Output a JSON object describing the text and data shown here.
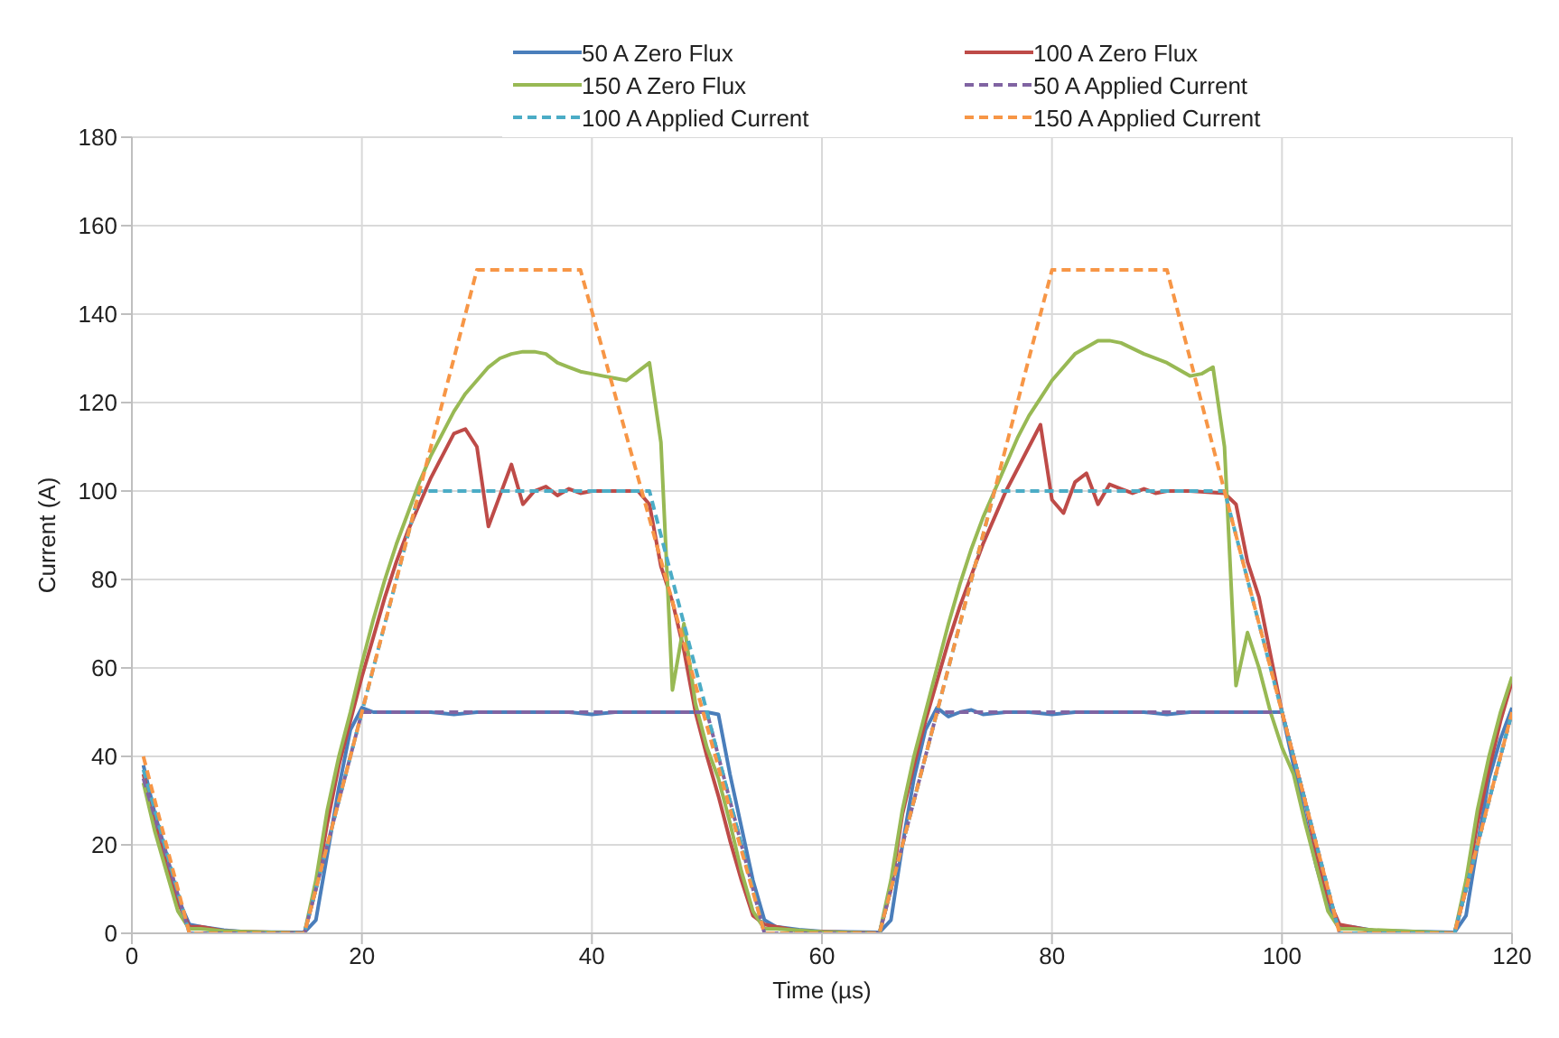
{
  "chart_data": {
    "type": "line",
    "xlabel": "Time (µs)",
    "ylabel": "Current (A)",
    "xlim": [
      0,
      120
    ],
    "xticks": [
      0,
      20,
      40,
      60,
      80,
      100,
      120
    ],
    "ylim": [
      0,
      180
    ],
    "yticks": [
      0,
      20,
      40,
      60,
      80,
      100,
      120,
      140,
      160,
      180
    ],
    "grid": true,
    "legend": "top",
    "marker": "none",
    "series": [
      {
        "name": "50 A Zero Flux",
        "color": "#4a7ebb",
        "line_style": "solid",
        "x": [
          1,
          2,
          3,
          4,
          5,
          6,
          8,
          10,
          15,
          16,
          17,
          18,
          19,
          20,
          21,
          22,
          24,
          26,
          28,
          30,
          32,
          34,
          36,
          38,
          40,
          42,
          44,
          46,
          48,
          50,
          51,
          52,
          53,
          54,
          55,
          56,
          58,
          60,
          65,
          66,
          67,
          68,
          69,
          70,
          71,
          72,
          73,
          74,
          76,
          78,
          80,
          82,
          84,
          86,
          88,
          90,
          92,
          94,
          96,
          98,
          100,
          101,
          102,
          103,
          104,
          105,
          106,
          108,
          115,
          116,
          117,
          118,
          119,
          120
        ],
        "values": [
          38,
          27,
          18,
          8,
          2,
          1.5,
          0.7,
          0.3,
          0.2,
          3,
          18,
          33,
          46,
          51,
          50,
          50,
          50,
          50,
          49.5,
          50,
          50,
          50,
          50,
          50,
          49.5,
          50,
          50,
          50,
          50,
          50,
          49.5,
          36,
          24,
          12,
          3,
          1.5,
          0.8,
          0.4,
          0.2,
          3,
          20,
          35,
          46,
          51,
          49,
          50,
          50.5,
          49.5,
          50,
          50,
          49.5,
          50,
          50,
          50,
          50,
          49.5,
          50,
          50,
          50,
          50,
          50,
          38,
          26,
          15,
          6,
          1.5,
          1.5,
          0.6,
          0.2,
          4,
          20,
          35,
          44,
          51
        ]
      },
      {
        "name": "100 A Zero Flux",
        "color": "#be4b48",
        "line_style": "solid",
        "x": [
          1,
          2,
          3,
          4,
          5,
          6,
          8,
          15,
          16,
          17,
          18,
          19,
          20,
          21,
          22,
          23,
          24,
          25,
          26,
          27,
          28,
          29,
          30,
          31,
          32,
          33,
          34,
          35,
          36,
          37,
          38,
          39,
          40,
          42,
          44,
          45,
          46,
          47,
          48,
          49,
          50,
          51,
          52,
          53,
          54,
          55,
          56,
          58,
          65,
          66,
          67,
          68,
          69,
          70,
          71,
          72,
          73,
          74,
          75,
          76,
          77,
          78,
          79,
          80,
          81,
          82,
          83,
          84,
          85,
          86,
          87,
          88,
          89,
          90,
          92,
          95,
          96,
          97,
          98,
          99,
          100,
          101,
          102,
          103,
          104,
          105,
          106,
          108,
          115,
          116,
          117,
          118,
          119,
          120
        ],
        "values": [
          36,
          25,
          16,
          7,
          1.5,
          1.5,
          0.5,
          0,
          10,
          25,
          38,
          48,
          58,
          67,
          76,
          84,
          91,
          97,
          103,
          108,
          113,
          114,
          110,
          92,
          99,
          106,
          97,
          100,
          101,
          99,
          100.5,
          99.5,
          100,
          100,
          100,
          97,
          83,
          75,
          64,
          50,
          40,
          31,
          21,
          12,
          4,
          2,
          1.5,
          0.5,
          0,
          10,
          27,
          38,
          48,
          57,
          66,
          74,
          81,
          88,
          94,
          100,
          105,
          110,
          115,
          98,
          95,
          102,
          104,
          97,
          101.5,
          100.5,
          99.5,
          100.5,
          99.5,
          100,
          100,
          99.5,
          97,
          84,
          76,
          63,
          50,
          40,
          30,
          18,
          8,
          2,
          1.5,
          0.5,
          0,
          10,
          25,
          37,
          48,
          57
        ]
      },
      {
        "name": "150 A Zero Flux",
        "color": "#98b954",
        "line_style": "solid",
        "x": [
          1,
          2,
          3,
          4,
          5,
          6,
          8,
          15,
          16,
          17,
          18,
          19,
          20,
          21,
          22,
          23,
          24,
          25,
          26,
          27,
          28,
          29,
          30,
          31,
          32,
          33,
          34,
          35,
          36,
          37,
          38,
          39,
          40,
          41,
          42,
          43,
          44,
          45,
          46,
          47,
          48,
          49,
          50,
          51,
          52,
          53,
          54,
          55,
          56,
          60,
          65,
          66,
          67,
          68,
          69,
          70,
          71,
          72,
          73,
          74,
          75,
          76,
          77,
          78,
          79,
          80,
          82,
          84,
          85,
          86,
          88,
          90,
          92,
          93,
          94,
          95,
          96,
          97,
          98,
          99,
          100,
          101,
          102,
          103,
          104,
          105,
          106,
          115,
          116,
          117,
          118,
          119,
          120
        ],
        "values": [
          34,
          23,
          14,
          5,
          1,
          1,
          0.5,
          0,
          12,
          28,
          40,
          50,
          61,
          71,
          80,
          88,
          95,
          102,
          108,
          113,
          118,
          122,
          125,
          128,
          130,
          131,
          131.5,
          131.5,
          131,
          129,
          128,
          127,
          126.5,
          126,
          125.5,
          125,
          127,
          129,
          111,
          55,
          70,
          52,
          42,
          35,
          25,
          14,
          5,
          1,
          1,
          0.3,
          0,
          12,
          28,
          40,
          50,
          60,
          70,
          79,
          87,
          94,
          100,
          106,
          112,
          117,
          121,
          125,
          131,
          134,
          134,
          133.5,
          131,
          129,
          126,
          126.5,
          128,
          110,
          56,
          68,
          60,
          50,
          42,
          36,
          25,
          15,
          5,
          1,
          1,
          0,
          12,
          28,
          40,
          50,
          58
        ]
      },
      {
        "name": "50 A Applied Current",
        "color": "#8064a2",
        "line_style": "dashed",
        "x": [
          1,
          5,
          15,
          20,
          50,
          55,
          65,
          70,
          100,
          105,
          115,
          120
        ],
        "values": [
          35,
          0,
          0,
          50,
          50,
          0,
          0,
          50,
          50,
          0,
          0,
          50
        ]
      },
      {
        "name": "100 A Applied Current",
        "color": "#4bacc6",
        "line_style": "dashed",
        "x": [
          1,
          5,
          15,
          25,
          45,
          55,
          65,
          75,
          95,
          105,
          115,
          120
        ],
        "values": [
          37,
          0,
          0,
          100,
          100,
          0,
          0,
          100,
          100,
          0,
          0,
          50
        ]
      },
      {
        "name": "150 A Applied Current",
        "color": "#f79646",
        "line_style": "dashed",
        "x": [
          1,
          5,
          15,
          30,
          39,
          55,
          65,
          80,
          90,
          105,
          115,
          120
        ],
        "values": [
          40,
          0,
          0,
          150,
          150,
          0,
          0,
          150,
          150,
          0,
          0,
          50
        ]
      }
    ]
  }
}
